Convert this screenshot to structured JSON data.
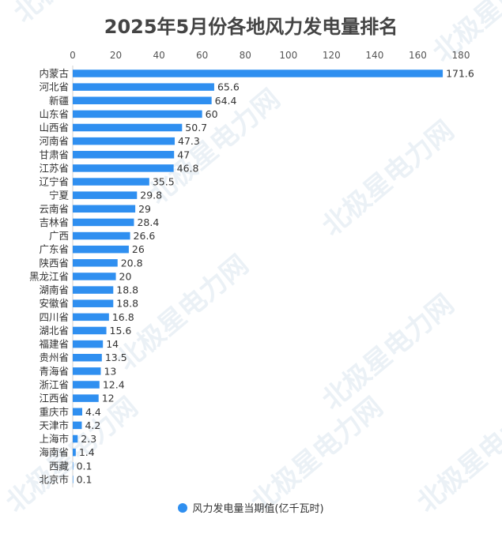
{
  "chart_data": {
    "type": "bar",
    "orientation": "horizontal",
    "title": "2025年5月份各地风力发电量排名",
    "categories": [
      "内蒙古",
      "河北省",
      "新疆",
      "山东省",
      "山西省",
      "河南省",
      "甘肃省",
      "江苏省",
      "辽宁省",
      "宁夏",
      "云南省",
      "吉林省",
      "广西",
      "广东省",
      "陕西省",
      "黑龙江省",
      "湖南省",
      "安徽省",
      "四川省",
      "湖北省",
      "福建省",
      "贵州省",
      "青海省",
      "浙江省",
      "江西省",
      "重庆市",
      "天津市",
      "上海市",
      "海南省",
      "西藏",
      "北京市"
    ],
    "series": [
      {
        "name": "风力发电量当期值(亿千瓦时)",
        "values": [
          171.6,
          65.6,
          64.4,
          60,
          50.7,
          47.3,
          47,
          46.8,
          35.5,
          29.8,
          29,
          28.4,
          26.6,
          26,
          20.8,
          20,
          18.8,
          18.8,
          16.8,
          15.6,
          14,
          13.5,
          13,
          12.4,
          12,
          4.4,
          4.2,
          2.3,
          1.4,
          0.1,
          0.1
        ]
      }
    ],
    "xlim": [
      0,
      180
    ],
    "xticks": [
      0,
      20,
      40,
      60,
      80,
      100,
      120,
      140,
      160,
      180
    ],
    "axis_position": "top",
    "grid": false,
    "legend_position": "bottom",
    "bar_color": "#2f8ff0",
    "watermark": "北极星电力网"
  }
}
